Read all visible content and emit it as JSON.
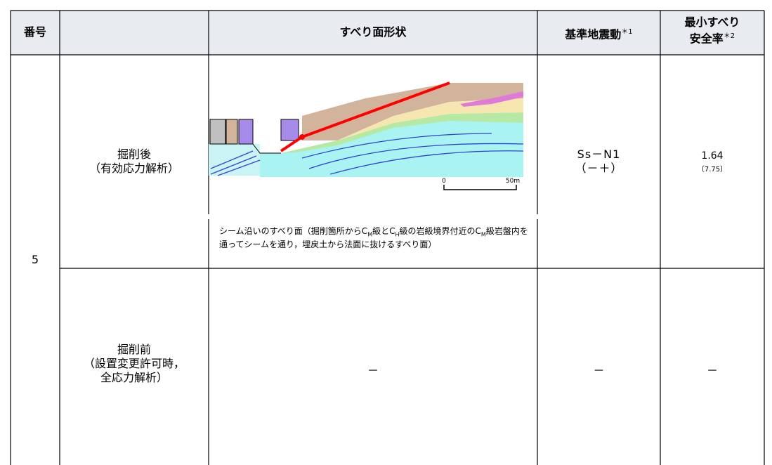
{
  "header": {
    "number": "番号",
    "shape": "すべり面形状",
    "motion": "基準地震動",
    "motion_note": "＊1",
    "safety_line1": "最小すべり",
    "safety_line2": "安全率",
    "safety_note": "＊2"
  },
  "number": "5",
  "rows": [
    {
      "case": [
        "掘削後",
        "（有効応力解析）"
      ],
      "motion": [
        "Ss－N1",
        "（－＋）"
      ],
      "safety": "1.64",
      "safety_sub": "〔7.75〕",
      "scale": [
        "0",
        "50m"
      ],
      "caption": [
        "シーム沿いのすべり面（掘削箇所からC",
        "M",
        "級とC",
        "H",
        "級の岩級境界付近の",
        "C",
        "M",
        "級岩盤内を通ってシームを通り，埋戻土から法面に抜けるすべり面）"
      ]
    },
    {
      "case": [
        "掘削前",
        "（設置変更許可時，",
        "全応力解析）"
      ],
      "shape": "－",
      "motion": "－",
      "safety": "－"
    }
  ]
}
